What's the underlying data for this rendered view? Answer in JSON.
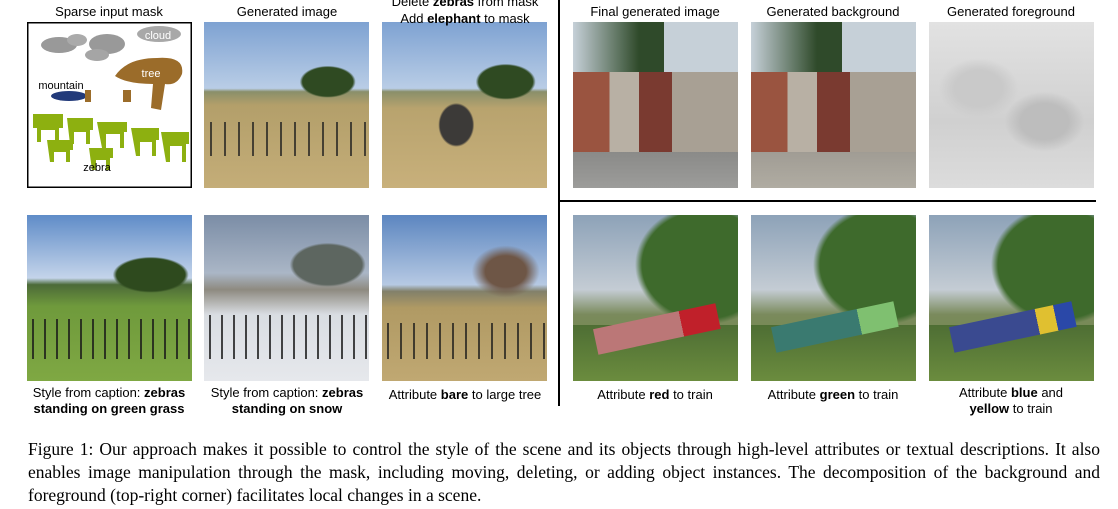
{
  "left_headers": [
    {
      "lines": [
        [
          {
            "text": "Sparse input mask"
          }
        ]
      ]
    },
    {
      "lines": [
        [
          {
            "text": "Generated image"
          }
        ]
      ]
    },
    {
      "lines": [
        [
          {
            "text": "Delete "
          },
          {
            "text": "zebras",
            "bold": true
          },
          {
            "text": " from mask"
          }
        ],
        [
          {
            "text": "Add "
          },
          {
            "text": "elephant",
            "bold": true
          },
          {
            "text": " to mask"
          }
        ]
      ]
    }
  ],
  "right_headers": [
    {
      "lines": [
        [
          {
            "text": "Final generated image"
          }
        ]
      ]
    },
    {
      "lines": [
        [
          {
            "text": "Generated background"
          }
        ]
      ]
    },
    {
      "lines": [
        [
          {
            "text": "Generated foreground"
          }
        ]
      ]
    }
  ],
  "mask_labels": {
    "cloud": "cloud",
    "tree": "tree",
    "mountain": "mountain",
    "zebra": "zebra"
  },
  "left_captions": [
    {
      "lines": [
        [
          {
            "text": "Style from caption: "
          },
          {
            "text": "zebras",
            "bold": true
          }
        ],
        [
          {
            "text": "standing on green grass",
            "bold": true
          }
        ]
      ]
    },
    {
      "lines": [
        [
          {
            "text": "Style from caption: "
          },
          {
            "text": "zebras",
            "bold": true
          }
        ],
        [
          {
            "text": "standing on snow",
            "bold": true
          }
        ]
      ]
    },
    {
      "lines": [
        [
          {
            "text": "Attribute "
          },
          {
            "text": "bare",
            "bold": true
          },
          {
            "text": " to large tree"
          }
        ]
      ]
    }
  ],
  "right_captions": [
    {
      "lines": [
        [
          {
            "text": "Attribute "
          },
          {
            "text": "red",
            "bold": true
          },
          {
            "text": " to train"
          }
        ]
      ]
    },
    {
      "lines": [
        [
          {
            "text": "Attribute "
          },
          {
            "text": "green",
            "bold": true
          },
          {
            "text": " to train"
          }
        ]
      ]
    },
    {
      "lines": [
        [
          {
            "text": "Attribute "
          },
          {
            "text": "blue",
            "bold": true
          },
          {
            "text": " and"
          }
        ],
        [
          {
            "text": "yellow",
            "bold": true
          },
          {
            "text": " to train"
          }
        ]
      ]
    }
  ],
  "figure_caption": {
    "label": "Figure 1:",
    "text": "Our approach makes it possible to control the style of the scene and its objects through high-level attributes or textual descriptions. It also enables image manipulation through the mask, including moving, deleting, or adding object instances. The decomposition of the background and foreground (top-right corner) facilitates local changes in a scene."
  }
}
